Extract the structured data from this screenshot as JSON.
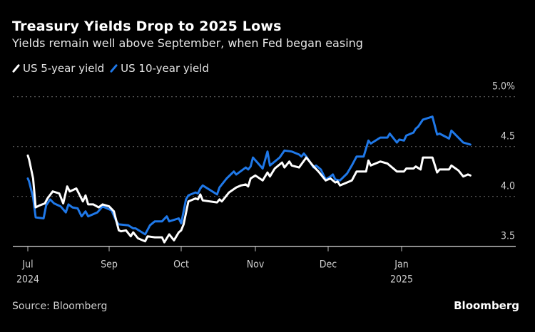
{
  "chart_data": {
    "type": "line",
    "title": "Treasury Yields Drop to 2025 Lows",
    "subtitle": "Yields remain well above September, when Fed began easing",
    "source": "Source: Bloomberg",
    "brand": "Bloomberg",
    "legend_position": "top-left",
    "grid": true,
    "ylim": [
      3.5,
      5.0
    ],
    "y_ticks": [
      {
        "value": 5.0,
        "label": "5.0%"
      },
      {
        "value": 4.5,
        "label": "4.5"
      },
      {
        "value": 4.0,
        "label": "4.0"
      },
      {
        "value": 3.5,
        "label": "3.5"
      }
    ],
    "x_ticks": [
      {
        "date": "2024-07-01",
        "label": "Jul",
        "year": "2024"
      },
      {
        "date": "2024-09-01",
        "label": "Sep",
        "year": ""
      },
      {
        "date": "2024-10-01",
        "label": "Oct",
        "year": ""
      },
      {
        "date": "2024-11-01",
        "label": "Nov",
        "year": ""
      },
      {
        "date": "2024-12-01",
        "label": "Dec",
        "year": ""
      },
      {
        "date": "2025-01-01",
        "label": "Jan",
        "year": "2025"
      }
    ],
    "series": [
      {
        "name": "US 5-year yield",
        "color": "#ffffff",
        "points": [
          [
            "2024-07-01",
            4.41
          ],
          [
            "2024-07-02",
            4.37
          ],
          [
            "2024-07-05",
            4.18
          ],
          [
            "2024-07-07",
            3.89
          ],
          [
            "2024-07-10",
            3.91
          ],
          [
            "2024-07-14",
            3.93
          ],
          [
            "2024-07-16",
            3.98
          ],
          [
            "2024-07-20",
            4.05
          ],
          [
            "2024-07-25",
            4.03
          ],
          [
            "2024-07-28",
            3.93
          ],
          [
            "2024-07-31",
            4.1
          ],
          [
            "2024-08-02",
            4.05
          ],
          [
            "2024-08-07",
            4.08
          ],
          [
            "2024-08-12",
            3.95
          ],
          [
            "2024-08-14",
            4.01
          ],
          [
            "2024-08-16",
            3.92
          ],
          [
            "2024-08-20",
            3.92
          ],
          [
            "2024-08-24",
            3.89
          ],
          [
            "2024-08-27",
            3.92
          ],
          [
            "2024-09-01",
            3.9
          ],
          [
            "2024-09-03",
            3.85
          ],
          [
            "2024-09-05",
            3.66
          ],
          [
            "2024-09-06",
            3.65
          ],
          [
            "2024-09-08",
            3.66
          ],
          [
            "2024-09-10",
            3.6
          ],
          [
            "2024-09-11",
            3.64
          ],
          [
            "2024-09-13",
            3.58
          ],
          [
            "2024-09-16",
            3.55
          ],
          [
            "2024-09-17",
            3.6
          ],
          [
            "2024-09-20",
            3.59
          ],
          [
            "2024-09-23",
            3.59
          ],
          [
            "2024-09-24",
            3.54
          ],
          [
            "2024-09-26",
            3.62
          ],
          [
            "2024-09-28",
            3.56
          ],
          [
            "2024-09-30",
            3.64
          ],
          [
            "2024-10-01",
            3.66
          ],
          [
            "2024-10-02",
            3.72
          ],
          [
            "2024-10-04",
            3.95
          ],
          [
            "2024-10-07",
            3.98
          ],
          [
            "2024-10-08",
            3.97
          ],
          [
            "2024-10-09",
            4.02
          ],
          [
            "2024-10-10",
            3.96
          ],
          [
            "2024-10-16",
            3.94
          ],
          [
            "2024-10-17",
            3.97
          ],
          [
            "2024-10-18",
            3.95
          ],
          [
            "2024-10-21",
            4.04
          ],
          [
            "2024-10-24",
            4.09
          ],
          [
            "2024-10-26",
            4.11
          ],
          [
            "2024-10-28",
            4.12
          ],
          [
            "2024-10-29",
            4.1
          ],
          [
            "2024-10-30",
            4.18
          ],
          [
            "2024-11-01",
            4.21
          ],
          [
            "2024-11-04",
            4.16
          ],
          [
            "2024-11-06",
            4.24
          ],
          [
            "2024-11-07",
            4.2
          ],
          [
            "2024-11-09",
            4.28
          ],
          [
            "2024-11-12",
            4.34
          ],
          [
            "2024-11-13",
            4.29
          ],
          [
            "2024-11-15",
            4.35
          ],
          [
            "2024-11-16",
            4.31
          ],
          [
            "2024-11-19",
            4.29
          ],
          [
            "2024-11-22",
            4.39
          ],
          [
            "2024-11-25",
            4.3
          ],
          [
            "2024-11-27",
            4.25
          ],
          [
            "2024-11-30",
            4.16
          ],
          [
            "2024-12-02",
            4.18
          ],
          [
            "2024-12-04",
            4.14
          ],
          [
            "2024-12-05",
            4.15
          ],
          [
            "2024-12-06",
            4.11
          ],
          [
            "2024-12-08",
            4.13
          ],
          [
            "2024-12-11",
            4.16
          ],
          [
            "2024-12-13",
            4.25
          ],
          [
            "2024-12-17",
            4.25
          ],
          [
            "2024-12-18",
            4.36
          ],
          [
            "2024-12-19",
            4.31
          ],
          [
            "2024-12-23",
            4.35
          ],
          [
            "2024-12-26",
            4.33
          ],
          [
            "2024-12-30",
            4.25
          ],
          [
            "2025-01-02",
            4.25
          ],
          [
            "2025-01-03",
            4.28
          ],
          [
            "2025-01-06",
            4.28
          ],
          [
            "2025-01-07",
            4.3
          ],
          [
            "2025-01-09",
            4.27
          ],
          [
            "2025-01-10",
            4.39
          ],
          [
            "2025-01-14",
            4.39
          ],
          [
            "2025-01-16",
            4.24
          ],
          [
            "2025-01-17",
            4.27
          ],
          [
            "2025-01-21",
            4.27
          ],
          [
            "2025-01-22",
            4.31
          ],
          [
            "2025-01-25",
            4.26
          ],
          [
            "2025-01-27",
            4.2
          ],
          [
            "2025-01-29",
            4.22
          ],
          [
            "2025-01-30",
            4.21
          ]
        ]
      },
      {
        "name": "US 10-year yield",
        "color": "#1f78e8",
        "points": [
          [
            "2024-07-01",
            4.18
          ],
          [
            "2024-07-02",
            4.15
          ],
          [
            "2024-07-05",
            3.99
          ],
          [
            "2024-07-07",
            3.79
          ],
          [
            "2024-07-13",
            3.78
          ],
          [
            "2024-07-15",
            3.91
          ],
          [
            "2024-07-18",
            3.97
          ],
          [
            "2024-07-21",
            3.93
          ],
          [
            "2024-07-26",
            3.9
          ],
          [
            "2024-07-30",
            3.84
          ],
          [
            "2024-08-01",
            3.92
          ],
          [
            "2024-08-04",
            3.89
          ],
          [
            "2024-08-08",
            3.88
          ],
          [
            "2024-08-11",
            3.8
          ],
          [
            "2024-08-14",
            3.85
          ],
          [
            "2024-08-16",
            3.8
          ],
          [
            "2024-08-23",
            3.84
          ],
          [
            "2024-08-27",
            3.9
          ],
          [
            "2024-09-02",
            3.86
          ],
          [
            "2024-09-04",
            3.75
          ],
          [
            "2024-09-05",
            3.72
          ],
          [
            "2024-09-09",
            3.71
          ],
          [
            "2024-09-11",
            3.68
          ],
          [
            "2024-09-12",
            3.68
          ],
          [
            "2024-09-16",
            3.62
          ],
          [
            "2024-09-18",
            3.71
          ],
          [
            "2024-09-20",
            3.75
          ],
          [
            "2024-09-23",
            3.75
          ],
          [
            "2024-09-25",
            3.8
          ],
          [
            "2024-09-26",
            3.75
          ],
          [
            "2024-09-30",
            3.78
          ],
          [
            "2024-10-01",
            3.73
          ],
          [
            "2024-10-02",
            3.85
          ],
          [
            "2024-10-03",
            3.97
          ],
          [
            "2024-10-04",
            4.01
          ],
          [
            "2024-10-07",
            4.04
          ],
          [
            "2024-10-08",
            4.03
          ],
          [
            "2024-10-09",
            4.08
          ],
          [
            "2024-10-10",
            4.11
          ],
          [
            "2024-10-16",
            4.02
          ],
          [
            "2024-10-17",
            4.09
          ],
          [
            "2024-10-20",
            4.18
          ],
          [
            "2024-10-23",
            4.25
          ],
          [
            "2024-10-24",
            4.22
          ],
          [
            "2024-10-28",
            4.29
          ],
          [
            "2024-10-29",
            4.27
          ],
          [
            "2024-10-30",
            4.3
          ],
          [
            "2024-10-31",
            4.39
          ],
          [
            "2024-11-04",
            4.28
          ],
          [
            "2024-11-06",
            4.45
          ],
          [
            "2024-11-07",
            4.31
          ],
          [
            "2024-11-11",
            4.39
          ],
          [
            "2024-11-13",
            4.46
          ],
          [
            "2024-11-16",
            4.45
          ],
          [
            "2024-11-19",
            4.42
          ],
          [
            "2024-11-20",
            4.4
          ],
          [
            "2024-11-21",
            4.43
          ],
          [
            "2024-11-22",
            4.4
          ],
          [
            "2024-11-25",
            4.29
          ],
          [
            "2024-11-26",
            4.31
          ],
          [
            "2024-11-28",
            4.27
          ],
          [
            "2024-11-30",
            4.17
          ],
          [
            "2024-12-02",
            4.2
          ],
          [
            "2024-12-03",
            4.22
          ],
          [
            "2024-12-04",
            4.17
          ],
          [
            "2024-12-06",
            4.16
          ],
          [
            "2024-12-09",
            4.23
          ],
          [
            "2024-12-11",
            4.31
          ],
          [
            "2024-12-13",
            4.4
          ],
          [
            "2024-12-16",
            4.4
          ],
          [
            "2024-12-18",
            4.56
          ],
          [
            "2024-12-19",
            4.53
          ],
          [
            "2024-12-23",
            4.59
          ],
          [
            "2024-12-26",
            4.59
          ],
          [
            "2024-12-27",
            4.63
          ],
          [
            "2024-12-30",
            4.54
          ],
          [
            "2024-12-31",
            4.57
          ],
          [
            "2025-01-02",
            4.56
          ],
          [
            "2025-01-03",
            4.61
          ],
          [
            "2025-01-06",
            4.64
          ],
          [
            "2025-01-07",
            4.68
          ],
          [
            "2025-01-08",
            4.7
          ],
          [
            "2025-01-10",
            4.77
          ],
          [
            "2025-01-14",
            4.8
          ],
          [
            "2025-01-16",
            4.62
          ],
          [
            "2025-01-17",
            4.63
          ],
          [
            "2025-01-21",
            4.58
          ],
          [
            "2025-01-22",
            4.66
          ],
          [
            "2025-01-27",
            4.54
          ],
          [
            "2025-01-30",
            4.52
          ]
        ]
      }
    ]
  }
}
